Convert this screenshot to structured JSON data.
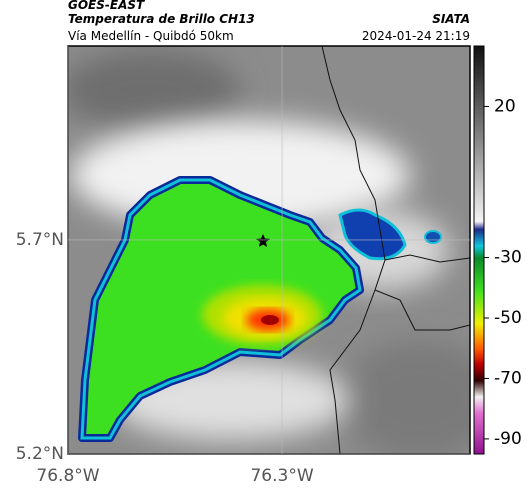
{
  "header": {
    "source": "GOES-EAST",
    "product": "Temperatura de Brillo CH13",
    "agency": "SIATA",
    "region": "Vía Medellín - Quibdó 50km",
    "timestamp": "2024-01-24 21:19"
  },
  "map": {
    "lonlim": [
      -76.8,
      -75.861
    ],
    "latlim": [
      5.2,
      6.153
    ],
    "lonticks": [
      {
        "value": -76.8,
        "label": "76.8°W"
      },
      {
        "value": -76.3,
        "label": "76.3°W"
      }
    ],
    "latticks": [
      {
        "value": 5.7,
        "label": "5.7°N"
      },
      {
        "value": 5.2,
        "label": "5.2°N"
      }
    ]
  },
  "colorbar": {
    "lim": [
      40,
      -95
    ],
    "ticks": [
      20,
      -30,
      -50,
      -70,
      -90
    ]
  }
}
